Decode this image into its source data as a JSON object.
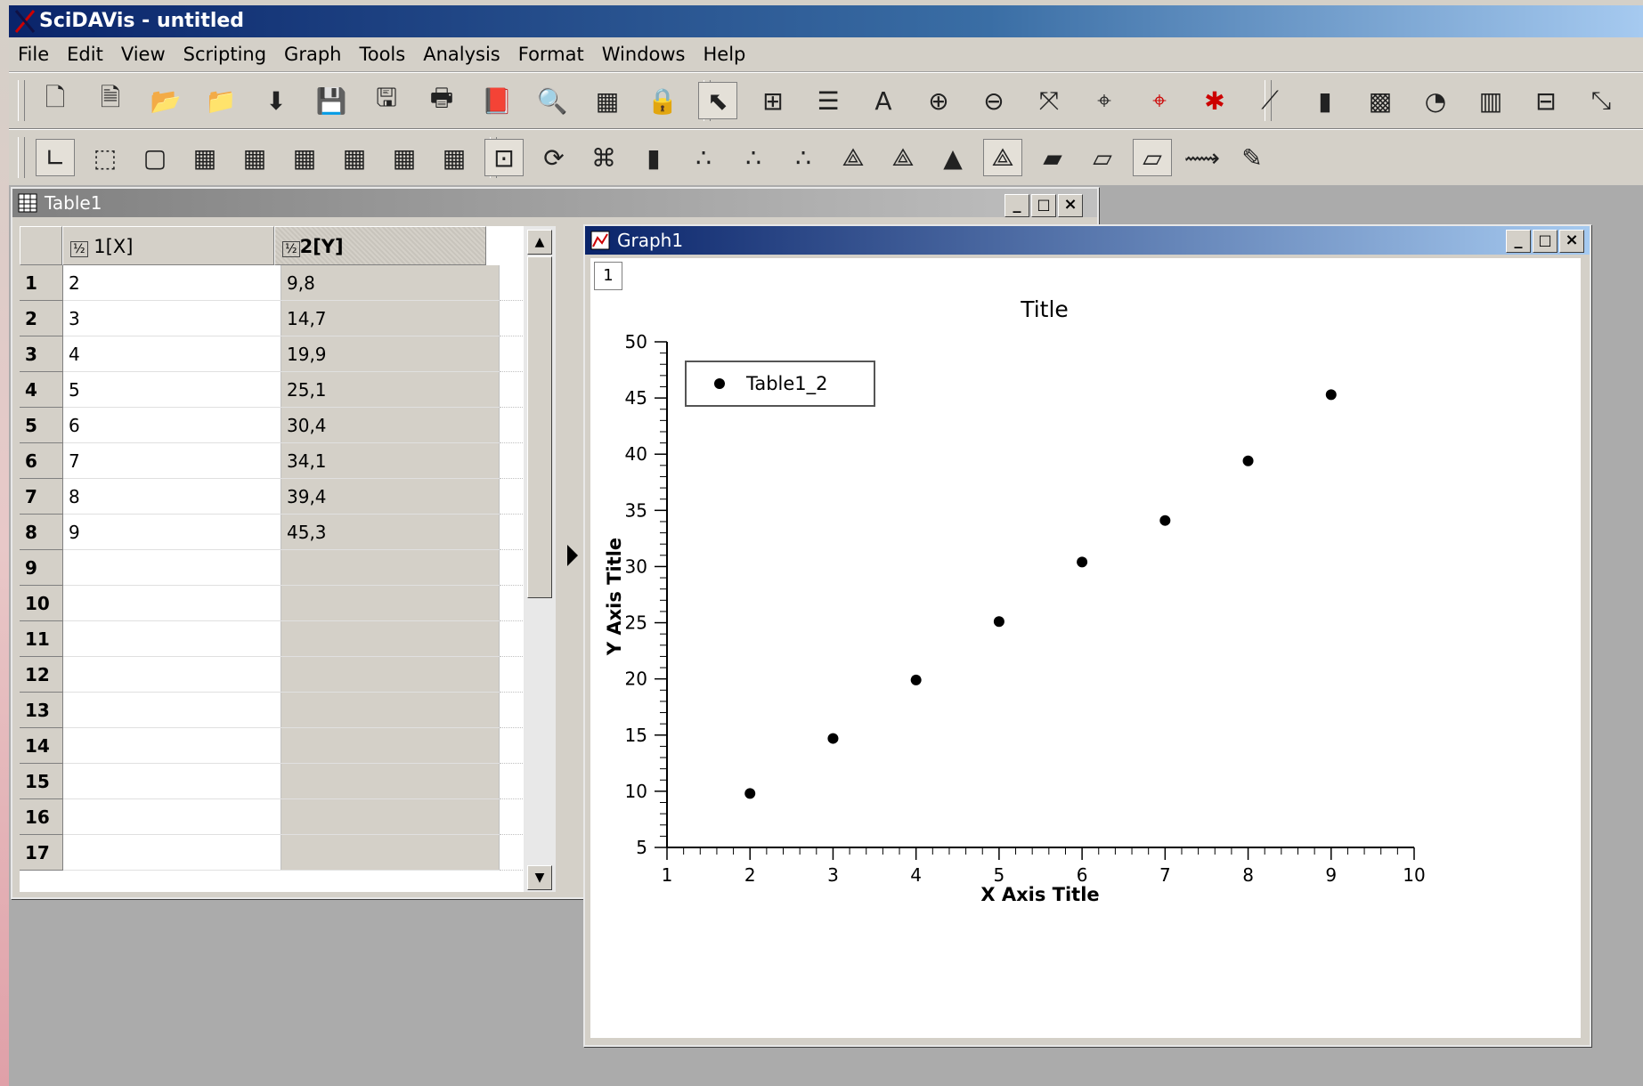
{
  "app": {
    "title": "SciDAVis - untitled"
  },
  "menu": [
    "File",
    "Edit",
    "View",
    "Scripting",
    "Graph",
    "Tools",
    "Analysis",
    "Format",
    "Windows",
    "Help"
  ],
  "toolbar1": {
    "icons": [
      "new-project-icon",
      "new-page-icon",
      "open-folder-icon",
      "open-template-icon",
      "import-ascii-icon",
      "save-icon",
      "save-as-icon",
      "print-icon",
      "export-pdf-icon",
      "project-explorer-icon",
      "results-log-icon",
      "lock-icon",
      "pointer-icon",
      "data-reader-icon",
      "screen-reader-icon",
      "add-text-icon",
      "zoom-in-icon",
      "zoom-out-icon",
      "rescale-icon",
      "crosshair-icon",
      "red-crosshair-icon",
      "remove-points-icon",
      "line-plot-icon",
      "bar-chart-icon",
      "color-map-icon",
      "pie-chart-icon",
      "3d-bars-icon",
      "box-plot-icon",
      "drag-range-icon"
    ]
  },
  "toolbar2": {
    "icons": [
      "axis-corner-icon",
      "box-3d-icon",
      "frame-3d-icon",
      "grid-front-icon",
      "grid-back-icon",
      "grid-left-icon",
      "grid-right-icon",
      "grid-ceil-icon",
      "grid-floor-icon",
      "perspective-icon",
      "rotate-icon",
      "fit-icon",
      "columns-icon",
      "dots-icon",
      "cones-icon",
      "crosses-icon",
      "mesh-icon",
      "hidden-mesh-icon",
      "polygon-icon",
      "mesh-filled-icon",
      "floor-data-icon",
      "floor-iso-icon",
      "floor-empty-icon",
      "animation-icon",
      "edit-icon"
    ]
  },
  "table_window": {
    "title": "Table1",
    "col_x": "1[X]",
    "col_y": "2[Y]",
    "rows": [
      {
        "n": "1",
        "x": "2",
        "y": "9,8"
      },
      {
        "n": "2",
        "x": "3",
        "y": "14,7"
      },
      {
        "n": "3",
        "x": "4",
        "y": "19,9"
      },
      {
        "n": "4",
        "x": "5",
        "y": "25,1"
      },
      {
        "n": "5",
        "x": "6",
        "y": "30,4"
      },
      {
        "n": "6",
        "x": "7",
        "y": "34,1"
      },
      {
        "n": "7",
        "x": "8",
        "y": "39,4"
      },
      {
        "n": "8",
        "x": "9",
        "y": "45,3"
      },
      {
        "n": "9",
        "x": "",
        "y": ""
      },
      {
        "n": "10",
        "x": "",
        "y": ""
      },
      {
        "n": "11",
        "x": "",
        "y": ""
      },
      {
        "n": "12",
        "x": "",
        "y": ""
      },
      {
        "n": "13",
        "x": "",
        "y": ""
      },
      {
        "n": "14",
        "x": "",
        "y": ""
      },
      {
        "n": "15",
        "x": "",
        "y": ""
      },
      {
        "n": "16",
        "x": "",
        "y": ""
      },
      {
        "n": "17",
        "x": "",
        "y": ""
      }
    ]
  },
  "graph_window": {
    "title": "Graph1",
    "layer_label": "1"
  },
  "chart_data": {
    "type": "scatter",
    "title": "Title",
    "xlabel": "X Axis Title",
    "ylabel": "Y Axis Title",
    "xlim": [
      1,
      10
    ],
    "ylim": [
      5,
      50
    ],
    "xticks": [
      "1",
      "2",
      "3",
      "4",
      "5",
      "6",
      "7",
      "8",
      "9",
      "10"
    ],
    "yticks": [
      "5",
      "10",
      "15",
      "20",
      "25",
      "30",
      "35",
      "40",
      "45",
      "50"
    ],
    "legend_position": "top-left",
    "series": [
      {
        "name": "Table1_2",
        "x": [
          2,
          3,
          4,
          5,
          6,
          7,
          8,
          9
        ],
        "y": [
          9.8,
          14.7,
          19.9,
          25.1,
          30.4,
          34.1,
          39.4,
          45.3
        ]
      }
    ]
  }
}
